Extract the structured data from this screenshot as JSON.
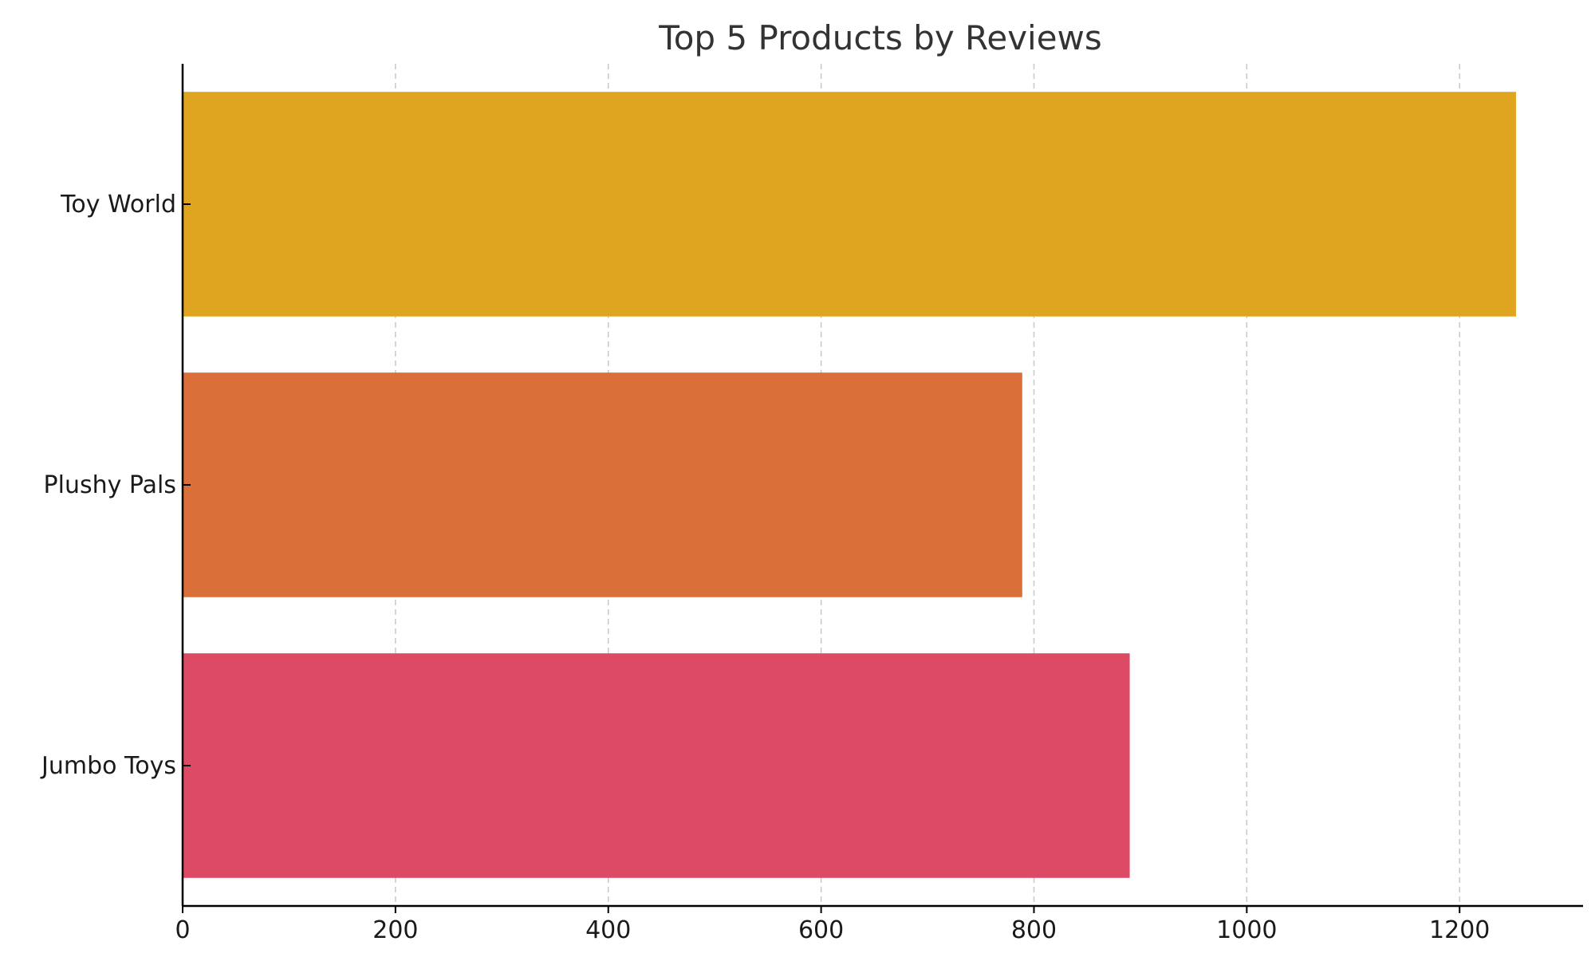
{
  "chart_data": {
    "type": "bar",
    "orientation": "horizontal",
    "title": "Top 5 Products by Reviews",
    "xlabel": "",
    "ylabel": "",
    "categories": [
      "Toy World",
      "Plushy Pals",
      "Jumbo Toys"
    ],
    "values": [
      1253,
      789,
      890
    ],
    "colors": [
      "#DFA420",
      "#DA6F3A",
      "#DD4A66"
    ],
    "xlim": [
      0,
      1316
    ],
    "xticks": [
      0,
      200,
      400,
      600,
      800,
      1000,
      1200
    ],
    "grid": "vertical dashed",
    "legend": "none"
  }
}
